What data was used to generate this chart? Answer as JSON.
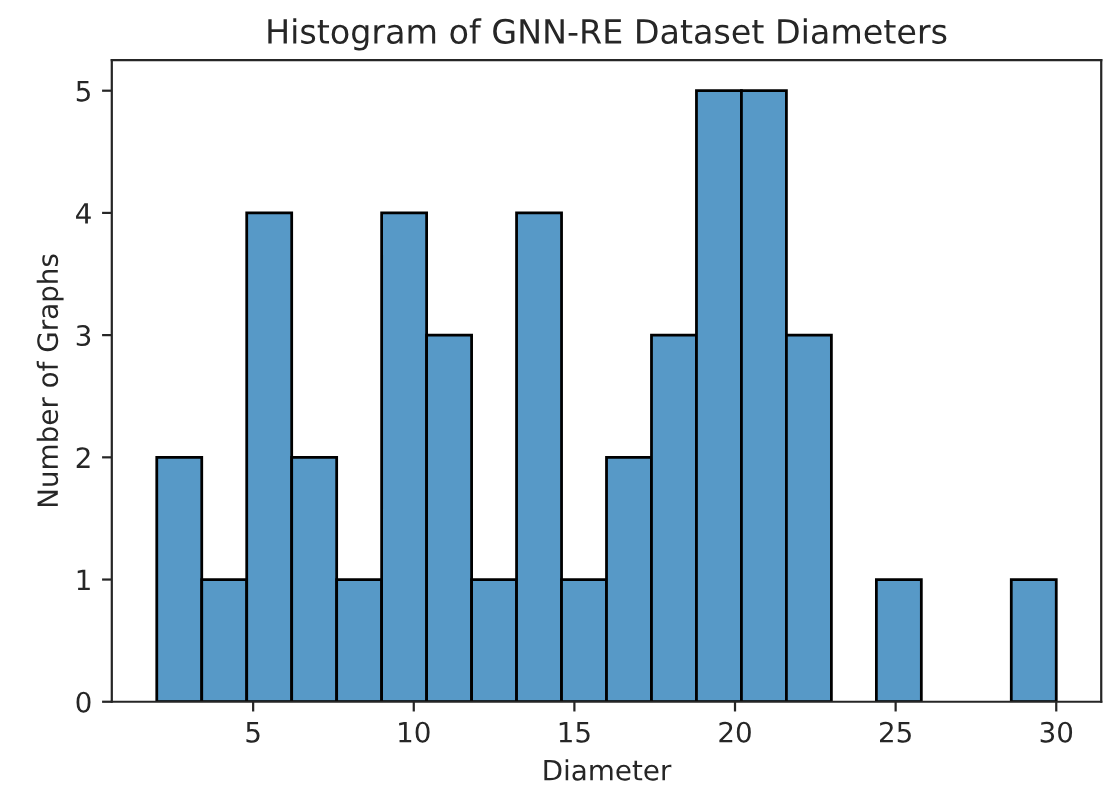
{
  "chart_data": {
    "type": "histogram",
    "title": "Histogram of GNN-RE Dataset Diameters",
    "xlabel": "Diameter",
    "ylabel": "Number of Graphs",
    "bins": [
      2,
      3.4,
      4.8,
      6.2,
      7.6,
      9,
      10.4,
      11.8,
      13.2,
      14.6,
      16,
      17.4,
      18.8,
      20.2,
      21.6,
      23,
      24.4,
      25.8,
      27.2,
      28.6,
      30
    ],
    "values": [
      2,
      1,
      4,
      2,
      1,
      4,
      3,
      1,
      4,
      1,
      2,
      3,
      5,
      5,
      3,
      0,
      1,
      0,
      0,
      1
    ],
    "color": "#5799c7",
    "xlim": [
      0.6,
      31.4
    ],
    "ylim": [
      0,
      5.25
    ],
    "xticks": [
      5,
      10,
      15,
      20,
      25,
      30
    ],
    "yticks": [
      0,
      1,
      2,
      3,
      4,
      5
    ],
    "grid": false,
    "legend": false
  }
}
